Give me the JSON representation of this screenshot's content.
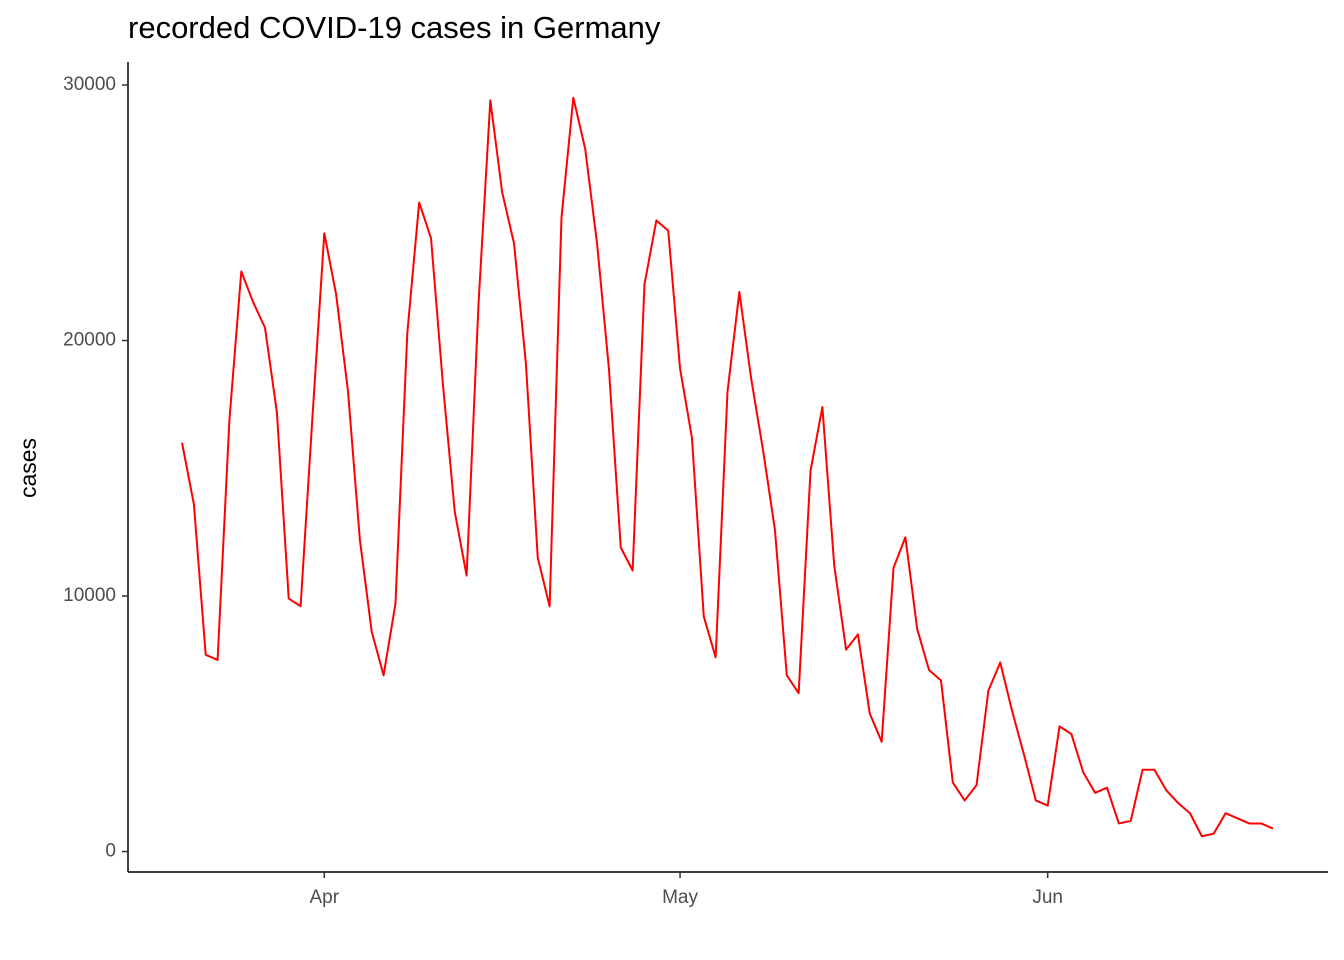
{
  "chart_data": {
    "type": "line",
    "title": "recorded COVID-19 cases in Germany",
    "y_label": "cases",
    "categories": [
      null,
      null,
      null,
      null,
      null,
      null,
      null,
      null,
      null,
      null,
      null,
      null,
      "Apr",
      null,
      null,
      null,
      null,
      null,
      null,
      null,
      null,
      null,
      null,
      null,
      null,
      null,
      null,
      null,
      null,
      null,
      null,
      null,
      null,
      null,
      null,
      null,
      null,
      null,
      null,
      null,
      null,
      null,
      "May",
      null,
      null,
      null,
      null,
      null,
      null,
      null,
      null,
      null,
      null,
      null,
      null,
      null,
      null,
      null,
      null,
      null,
      null,
      null,
      null,
      null,
      null,
      null,
      null,
      null,
      null,
      null,
      null,
      null,
      null,
      "Jun",
      null,
      null,
      null,
      null,
      null,
      null,
      null,
      null,
      null,
      null,
      null,
      null,
      null,
      null,
      null,
      null,
      null,
      null,
      null
    ],
    "values": [
      16000,
      13600,
      7700,
      7500,
      16900,
      22700,
      21500,
      20500,
      17200,
      9900,
      9600,
      17000,
      24200,
      21800,
      18000,
      12200,
      8600,
      6900,
      9700,
      20300,
      25400,
      24000,
      18300,
      13300,
      10800,
      21400,
      29400,
      25800,
      23800,
      19100,
      11500,
      9600,
      24800,
      29500,
      27500,
      23800,
      18900,
      11900,
      11000,
      22200,
      24700,
      24300,
      18900,
      16200,
      9200,
      7600,
      18000,
      21900,
      18500,
      15700,
      12600,
      6900,
      6200,
      14900,
      17400,
      11200,
      7900,
      8500,
      5400,
      4300,
      11100,
      12300,
      8700,
      7100,
      6700,
      2700,
      2000,
      2600,
      6300,
      7400,
      5500,
      3800,
      2000,
      1800,
      4900,
      4600,
      3100,
      2300,
      2500,
      1100,
      1200,
      3200,
      3200,
      2400,
      1900,
      1500,
      600,
      700,
      1500,
      1300,
      1100,
      1100,
      900
    ],
    "color": "#ff0000",
    "ylim": [
      -800,
      30900
    ],
    "yticks": [
      0,
      10000,
      20000,
      30000
    ],
    "grid": false
  }
}
